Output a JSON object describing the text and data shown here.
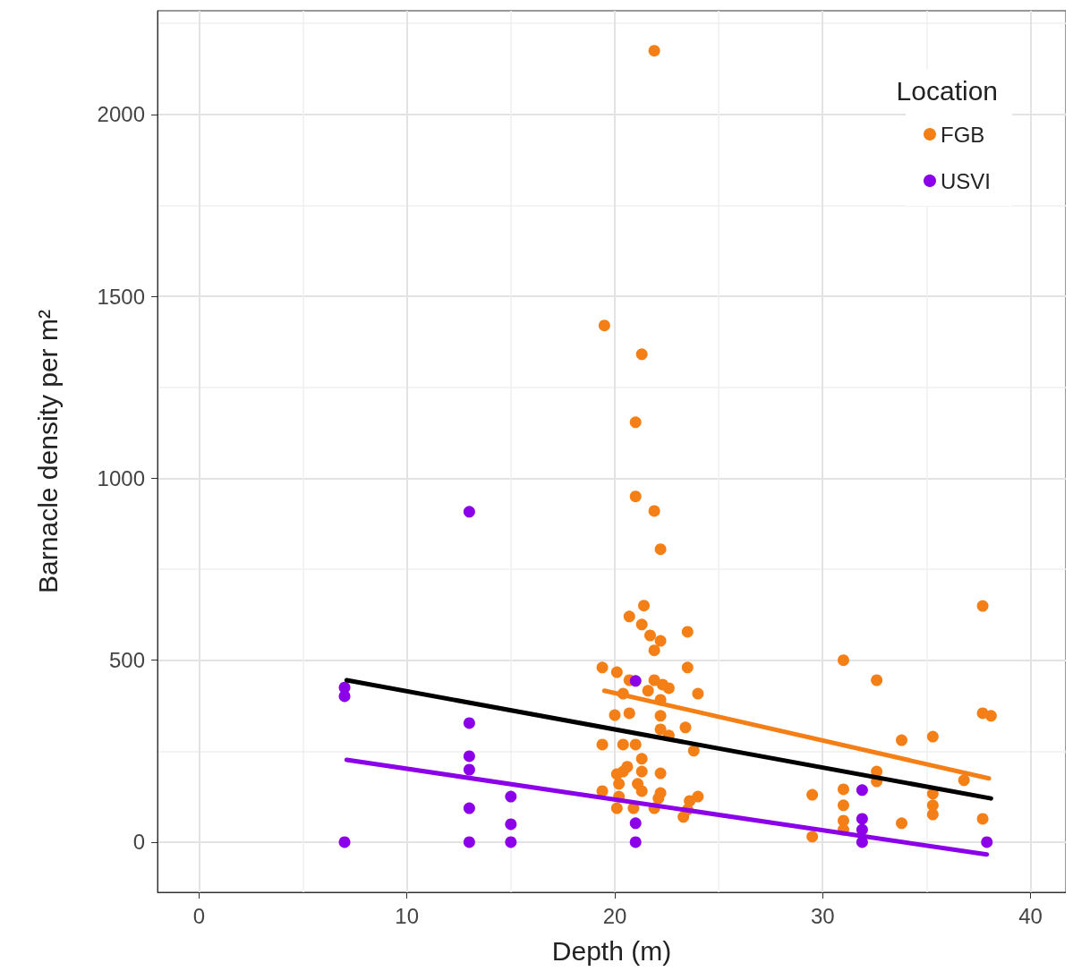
{
  "chart_data": {
    "type": "scatter",
    "xlabel": "Depth (m)",
    "ylabel": "Barnacle density per m²",
    "legend_title": "Location",
    "legend": "top right",
    "grid": true,
    "marker": "circle",
    "xlim": [
      -2,
      41.7
    ],
    "ylim": [
      -138,
      2285
    ],
    "xticks": [
      0,
      10,
      20,
      30,
      40
    ],
    "yticks": [
      0,
      500,
      1000,
      1500,
      2000
    ],
    "series": [
      {
        "name": "FGB",
        "color": "#f57f17",
        "x": [
          21.9,
          19.5,
          21.3,
          21.0,
          21.0,
          21.9,
          22.2,
          21.4,
          20.7,
          21.3,
          21.7,
          22.2,
          23.5,
          21.9,
          19.4,
          20.1,
          23.5,
          20.7,
          21.9,
          22.3,
          22.6,
          21.6,
          20.4,
          24.0,
          22.2,
          22.2,
          20.0,
          20.7,
          22.2,
          23.4,
          22.6,
          19.4,
          20.4,
          21.0,
          23.8,
          21.3,
          20.6,
          22.2,
          20.1,
          20.4,
          21.3,
          20.2,
          21.1,
          19.4,
          21.3,
          22.2,
          20.2,
          24.0,
          22.1,
          20.1,
          20.9,
          21.9,
          23.3,
          23.5,
          23.6,
          37.7,
          31.0,
          32.6,
          37.7,
          38.1,
          35.3,
          33.8,
          32.6,
          32.6,
          36.8,
          29.5,
          31.0,
          31.0,
          31.0,
          31.0,
          35.3,
          35.3,
          35.3,
          33.8,
          37.7,
          29.5
        ],
        "values": [
          2175,
          1420,
          1341,
          1154,
          950,
          910,
          805,
          650,
          620,
          598,
          568,
          553,
          578,
          527,
          480,
          467,
          480,
          445,
          445,
          433,
          423,
          416,
          408,
          408,
          391,
          347,
          349,
          354,
          310,
          315,
          293,
          268,
          268,
          268,
          251,
          229,
          207,
          189,
          187,
          194,
          194,
          160,
          160,
          140,
          140,
          135,
          125,
          125,
          120,
          93,
          93,
          93,
          69,
          89,
          113,
          649,
          500,
          445,
          354,
          347,
          290,
          280,
          194,
          167,
          170,
          130,
          145,
          101,
          59,
          34,
          133,
          101,
          76,
          52,
          64,
          15
        ]
      },
      {
        "name": "USVI",
        "color": "#8b00e8",
        "x": [
          7,
          7,
          7,
          13,
          13,
          13,
          13,
          13,
          13,
          15,
          15,
          15,
          21,
          21,
          21,
          31.9,
          31.9,
          31.9,
          31.9,
          37.9
        ],
        "values": [
          0,
          425,
          401,
          908,
          327,
          236,
          199,
          93,
          0,
          125,
          49,
          0,
          443,
          52,
          0,
          143,
          64,
          34,
          0,
          0
        ]
      },
      {
        "type": "line",
        "color": "#000000",
        "line_style": "solid",
        "marker": "none",
        "x": [
          7.1,
          38.1
        ],
        "values": [
          445,
          120
        ]
      },
      {
        "type": "line",
        "color": "#f57f17",
        "line_style": "solid",
        "marker": "none",
        "x": [
          19.5,
          38.0
        ],
        "values": [
          416,
          175
        ]
      },
      {
        "type": "line",
        "color": "#8b00e8",
        "line_style": "solid",
        "marker": "none",
        "x": [
          7.1,
          37.9
        ],
        "values": [
          226,
          -34
        ]
      }
    ]
  }
}
